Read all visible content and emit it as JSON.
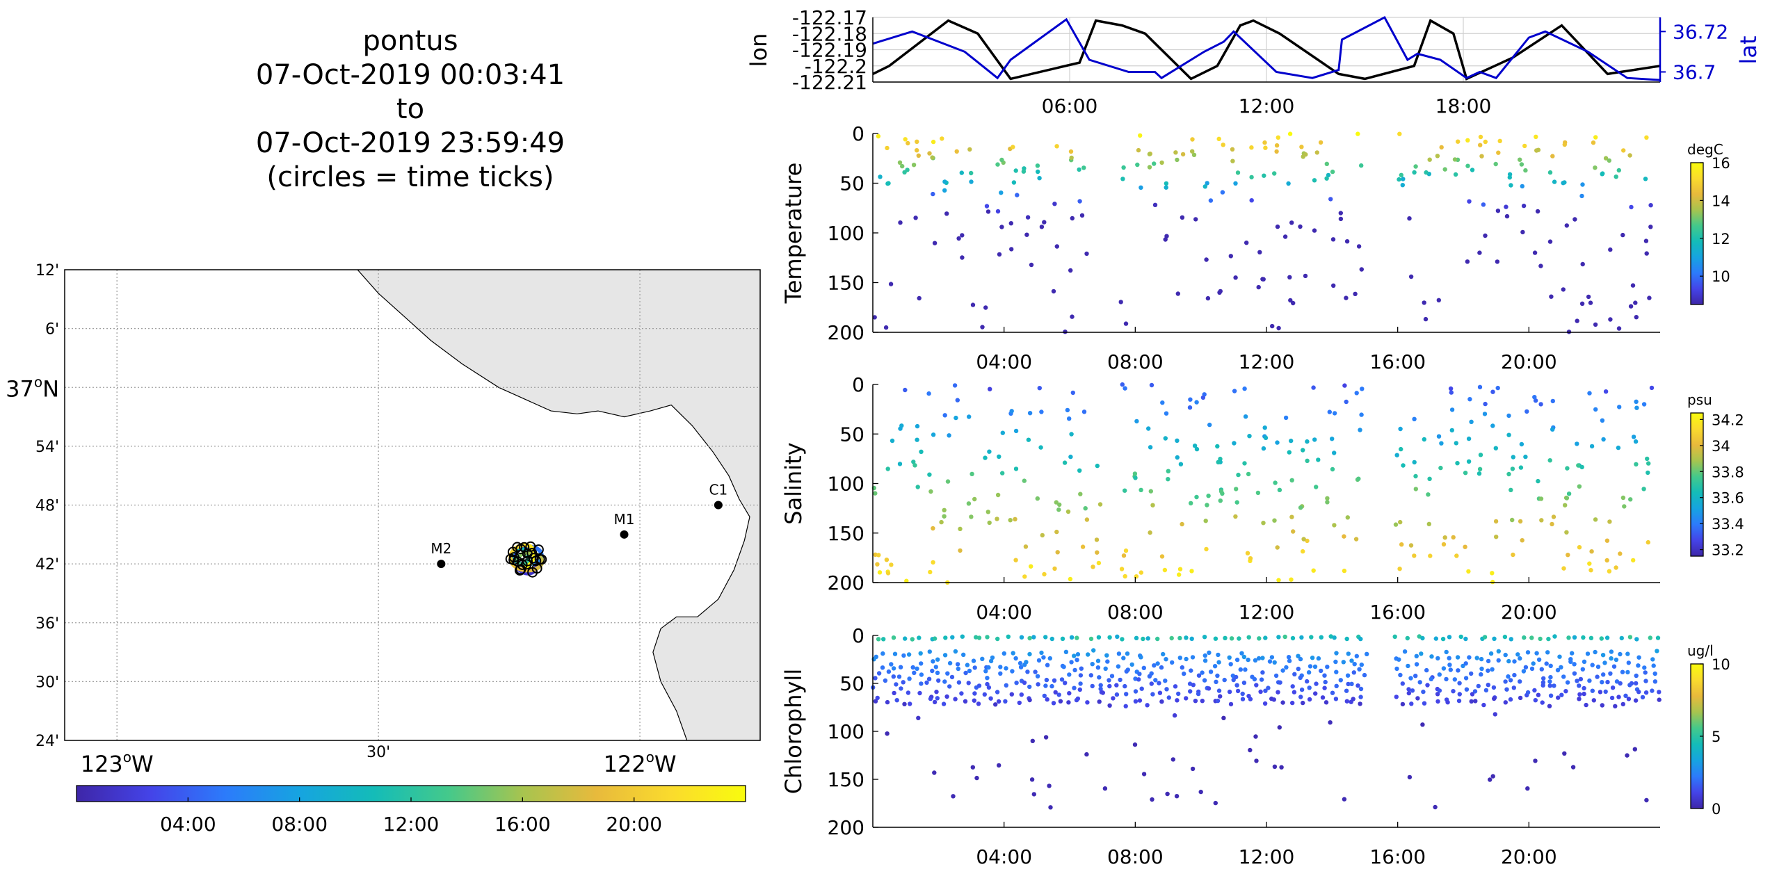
{
  "title": {
    "lines": [
      "pontus",
      "07-Oct-2019 00:03:41",
      "to",
      "07-Oct-2019 23:59:49",
      "(circles = time ticks)"
    ]
  },
  "colors": {
    "land": "#e6e6e6",
    "grid": "#a0a0a0",
    "lon_line": "#000000",
    "lat_line": "#0000cc",
    "parula": [
      "#3e26a8",
      "#4444e8",
      "#2c7bfb",
      "#16a4e0",
      "#14bcb8",
      "#44c98b",
      "#a7c44f",
      "#e8ba3c",
      "#fadb2d",
      "#f9fb0e"
    ]
  },
  "chart_data": [
    {
      "id": "track-map",
      "type": "scatter",
      "lat_ticks": [
        "12'",
        "6'",
        "37°N",
        "54'",
        "48'",
        "42'",
        "36'",
        "30'",
        "24'"
      ],
      "lon_ticks": [
        "123°W",
        "30'",
        "122°W"
      ],
      "xlim": [
        -123.1,
        -121.77
      ],
      "ylim": [
        36.4,
        37.2
      ],
      "grid": true,
      "stations": [
        {
          "name": "M2",
          "lon": -122.38,
          "lat": 36.7
        },
        {
          "name": "M1",
          "lon": -122.03,
          "lat": 36.75
        },
        {
          "name": "C1",
          "lon": -121.85,
          "lat": 36.8
        }
      ],
      "track_center": {
        "lon": -122.22,
        "lat": 36.71
      },
      "colorbar": {
        "ticks": [
          "04:00",
          "08:00",
          "12:00",
          "16:00",
          "20:00"
        ],
        "range_hours": [
          0,
          24
        ]
      }
    },
    {
      "id": "lon-lat",
      "type": "line",
      "ylabel_left": "lon",
      "ylabel_right": "lat",
      "left_ticks": [
        "-122.17",
        "-122.18",
        "-122.19",
        "-122.2",
        "-122.21"
      ],
      "right_ticks": [
        "36.72",
        "36.7"
      ],
      "x_ticks": [
        "06:00",
        "12:00",
        "18:00"
      ],
      "xlim_hours": [
        0,
        24
      ],
      "lon_ylim": [
        -122.21,
        -122.17
      ],
      "lat_ylim": [
        36.695,
        36.727
      ],
      "lon_series": {
        "hours": [
          0,
          0.5,
          2.3,
          3.2,
          4.2,
          6.3,
          6.8,
          7.6,
          8.3,
          9.7,
          10.5,
          11.2,
          11.6,
          12.4,
          14.2,
          15.0,
          16.5,
          17.0,
          17.7,
          18.1,
          19.5,
          21.0,
          22.4,
          24
        ],
        "lon": [
          -122.205,
          -122.2,
          -122.172,
          -122.18,
          -122.208,
          -122.198,
          -122.172,
          -122.175,
          -122.18,
          -122.208,
          -122.2,
          -122.175,
          -122.172,
          -122.18,
          -122.205,
          -122.208,
          -122.2,
          -122.172,
          -122.18,
          -122.208,
          -122.195,
          -122.175,
          -122.205,
          -122.2
        ]
      },
      "lat_series": {
        "hours": [
          0,
          1.2,
          2.8,
          3.8,
          4.2,
          5.9,
          6.6,
          7.8,
          8.6,
          8.8,
          10.1,
          10.7,
          11.0,
          12.3,
          13.4,
          14.2,
          14.3,
          15.6,
          16.3,
          16.6,
          17.3,
          18.1,
          18.5,
          19.0,
          20.0,
          20.5,
          21.8,
          23.0,
          24
        ],
        "lat": [
          36.714,
          36.72,
          36.71,
          36.697,
          36.706,
          36.726,
          36.706,
          36.7,
          36.7,
          36.697,
          36.71,
          36.715,
          36.72,
          36.7,
          36.697,
          36.701,
          36.716,
          36.727,
          36.706,
          36.709,
          36.706,
          36.697,
          36.7,
          36.697,
          36.717,
          36.72,
          36.71,
          36.697,
          36.696
        ]
      }
    },
    {
      "id": "temperature",
      "type": "scatter",
      "ylabel": "Temperature",
      "colorbar_label": "degC",
      "colorbar_ticks": [
        "16",
        "14",
        "12",
        "10"
      ],
      "clim": [
        8.5,
        16
      ],
      "y_ticks": [
        "0",
        "50",
        "100",
        "150",
        "200"
      ],
      "ylim": [
        0,
        200
      ],
      "x_ticks": [
        "04:00",
        "08:00",
        "12:00",
        "16:00",
        "20:00"
      ],
      "xlim_hours": [
        0,
        24
      ],
      "gaps_hours": [
        [
          6.8,
          7.5
        ],
        [
          15.0,
          15.8
        ]
      ]
    },
    {
      "id": "salinity",
      "type": "scatter",
      "ylabel": "Salinity",
      "colorbar_label": "psu",
      "colorbar_ticks": [
        "34.2",
        "34",
        "33.8",
        "33.6",
        "33.4",
        "33.2"
      ],
      "clim": [
        33.15,
        34.25
      ],
      "y_ticks": [
        "0",
        "50",
        "100",
        "150",
        "200"
      ],
      "ylim": [
        0,
        200
      ],
      "x_ticks": [
        "04:00",
        "08:00",
        "12:00",
        "16:00",
        "20:00"
      ],
      "xlim_hours": [
        0,
        24
      ],
      "gaps_hours": [
        [
          7.0,
          7.5
        ],
        [
          15.0,
          15.8
        ]
      ]
    },
    {
      "id": "chlorophyll",
      "type": "scatter",
      "ylabel": "Chlorophyll",
      "colorbar_label": "ug/l",
      "colorbar_ticks": [
        "10",
        "5",
        "0"
      ],
      "clim": [
        0,
        10
      ],
      "y_ticks": [
        "0",
        "50",
        "100",
        "150",
        "200"
      ],
      "ylim": [
        0,
        200
      ],
      "x_ticks": [
        "04:00",
        "08:00",
        "12:00",
        "16:00",
        "20:00"
      ],
      "xlim_hours": [
        0,
        24
      ],
      "gaps_hours": [
        [
          15.0,
          15.8
        ]
      ]
    }
  ]
}
